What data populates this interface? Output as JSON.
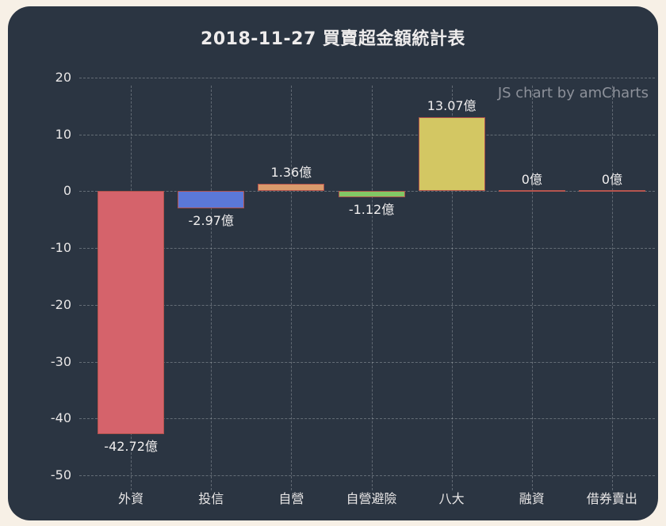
{
  "page": {
    "background_color": "#f7f0e6"
  },
  "panel": {
    "background_color": "#2b3542"
  },
  "header": {
    "title": "2018-11-27 買賣超金額統計表"
  },
  "watermark": {
    "label": "JS chart by amCharts"
  },
  "chart_data": {
    "type": "bar",
    "title": "2018-11-27 買賣超金額統計表",
    "categories": [
      "外資",
      "投信",
      "自營",
      "自營避險",
      "八大",
      "融資",
      "借券賣出"
    ],
    "values": [
      -42.72,
      -2.97,
      1.36,
      -1.12,
      13.07,
      0,
      0
    ],
    "value_labels": [
      "-42.72億",
      "-2.97億",
      "1.36億",
      "-1.12億",
      "13.07億",
      "0億",
      "0億"
    ],
    "bar_colors": [
      "#d5636b",
      "#5b78d8",
      "#d99b6c",
      "#82c765",
      "#d3c763",
      "#b5564f",
      "#b5564f"
    ],
    "bar_border_color": "#b0524c",
    "zero_bar_color": "#b5564f",
    "unit": "億",
    "xlabel": "",
    "ylabel": "",
    "ylim": [
      -50,
      20
    ],
    "yticks": [
      20,
      10,
      0,
      -10,
      -20,
      -30,
      -40,
      -50
    ],
    "grid": true,
    "grid_style": "dashed",
    "legend_position": "none",
    "text_color": "#e8e6e6",
    "value_label_color": "#f0eeee"
  }
}
